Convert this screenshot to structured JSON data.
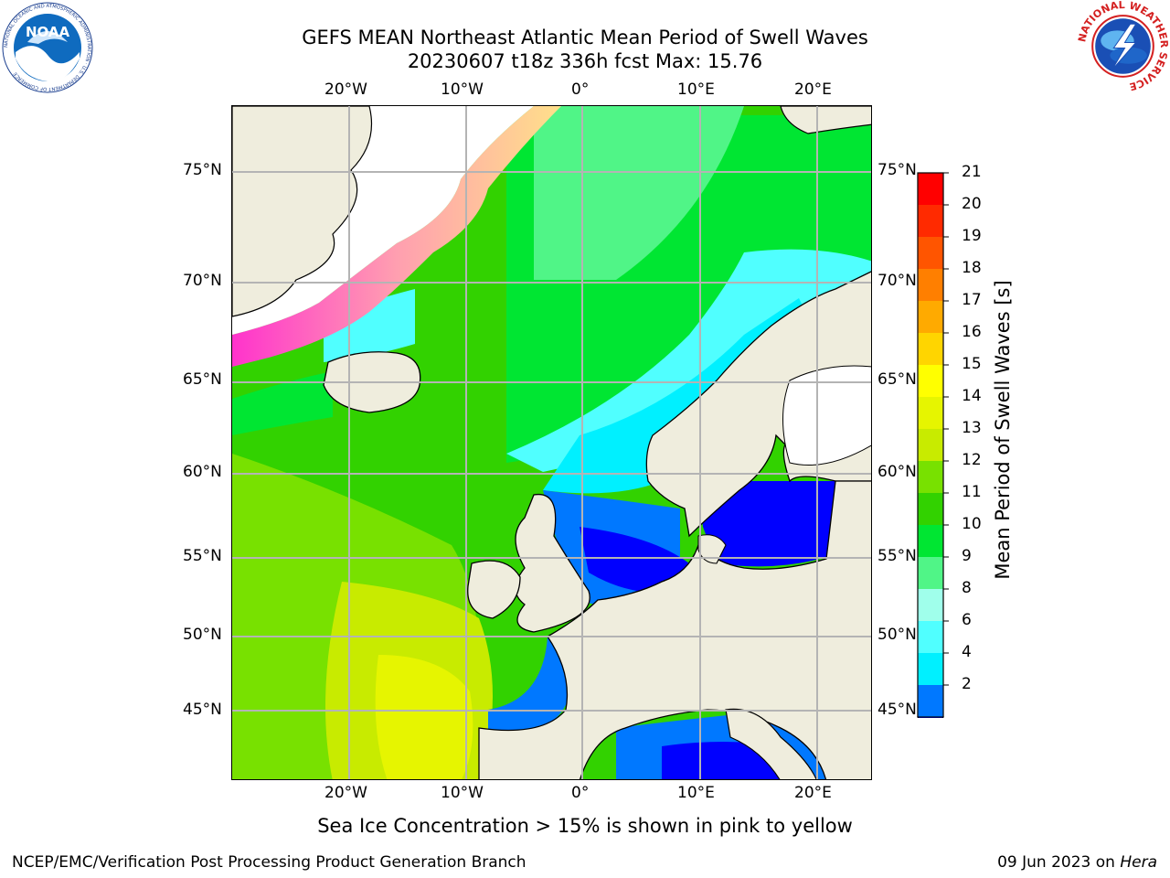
{
  "title": {
    "line1": "GEFS MEAN Northeast Atlantic Mean Period of Swell Waves",
    "line2": "20230607 t18z 336h fcst   Max: 15.76"
  },
  "logos": {
    "left": "NOAA",
    "left_ring": "NATIONAL OCEANIC AND ATMOSPHERIC ADMINISTRATION · U.S. DEPARTMENT OF COMMERCE",
    "right_ring": "NATIONAL WEATHER SERVICE"
  },
  "map": {
    "lon_labels_top": [
      "20°W",
      "10°W",
      "0°",
      "10°E",
      "20°E"
    ],
    "lon_labels_bottom": [
      "20°W",
      "10°W",
      "0°",
      "10°E",
      "20°E"
    ],
    "lat_labels_left": [
      "75°N",
      "70°N",
      "65°N",
      "60°N",
      "55°N",
      "50°N",
      "45°N"
    ],
    "lat_labels_right": [
      "75°N",
      "70°N",
      "65°N",
      "60°N",
      "55°N",
      "50°N",
      "45°N"
    ],
    "colors": {
      "land": "#efeddd",
      "ice": "#ffffff",
      "grid": "#b4b4b4",
      "coast": "#000000"
    }
  },
  "colorbar": {
    "label": "Mean Period of Swell Waves [s]",
    "ticks": [
      "21",
      "20",
      "19",
      "18",
      "17",
      "16",
      "15",
      "14",
      "13",
      "12",
      "11",
      "10",
      "9",
      "8",
      "6",
      "4",
      "2"
    ],
    "colors": [
      "#ff0000",
      "#ff2a00",
      "#ff5500",
      "#ff7f00",
      "#ffaa00",
      "#ffd500",
      "#ffff00",
      "#e6f500",
      "#c8eb00",
      "#78e100",
      "#32d200",
      "#00e632",
      "#50f587",
      "#a0ffeb",
      "#50ffff",
      "#00f0ff",
      "#0078ff",
      "#0000ff"
    ]
  },
  "caption": "Sea Ice Concentration > 15% is shown in pink to yellow",
  "footer": {
    "left": "NCEP/EMC/Verification Post Processing Product Generation Branch",
    "right_date": "09 Jun 2023 on ",
    "right_machine": "Hera"
  }
}
